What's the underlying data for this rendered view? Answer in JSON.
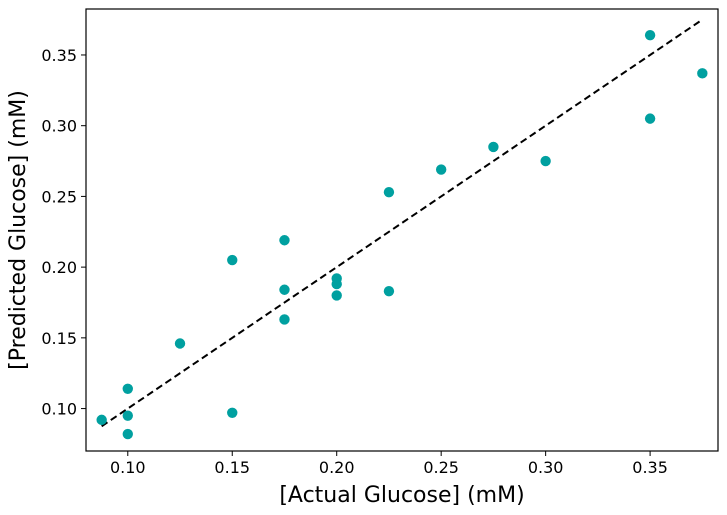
{
  "chart_data": {
    "type": "scatter",
    "title": "",
    "xlabel": "[Actual Glucose] (mM)",
    "ylabel": "[Predicted Glucose] (mM)",
    "xlim": [
      0.08,
      0.3825
    ],
    "ylim": [
      0.07,
      0.3825
    ],
    "xticks": [
      0.1,
      0.15,
      0.2,
      0.25,
      0.3,
      0.35
    ],
    "xtick_labels": [
      "0.10",
      "0.15",
      "0.20",
      "0.25",
      "0.30",
      "0.35"
    ],
    "yticks": [
      0.1,
      0.15,
      0.2,
      0.25,
      0.3,
      0.35
    ],
    "ytick_labels": [
      "0.10",
      "0.15",
      "0.20",
      "0.25",
      "0.30",
      "0.35"
    ],
    "grid": false,
    "marker_color": "#00a0a0",
    "reference_line": {
      "style": "dashed",
      "color": "#000000",
      "x": [
        0.0875,
        0.375
      ],
      "y": [
        0.0875,
        0.375
      ]
    },
    "points": [
      {
        "x": 0.0875,
        "y": 0.092
      },
      {
        "x": 0.1,
        "y": 0.114
      },
      {
        "x": 0.1,
        "y": 0.095
      },
      {
        "x": 0.1,
        "y": 0.082
      },
      {
        "x": 0.125,
        "y": 0.146
      },
      {
        "x": 0.15,
        "y": 0.205
      },
      {
        "x": 0.15,
        "y": 0.097
      },
      {
        "x": 0.175,
        "y": 0.219
      },
      {
        "x": 0.175,
        "y": 0.184
      },
      {
        "x": 0.175,
        "y": 0.163
      },
      {
        "x": 0.2,
        "y": 0.192
      },
      {
        "x": 0.2,
        "y": 0.188
      },
      {
        "x": 0.2,
        "y": 0.18
      },
      {
        "x": 0.225,
        "y": 0.253
      },
      {
        "x": 0.225,
        "y": 0.183
      },
      {
        "x": 0.25,
        "y": 0.269
      },
      {
        "x": 0.275,
        "y": 0.285
      },
      {
        "x": 0.3,
        "y": 0.275
      },
      {
        "x": 0.35,
        "y": 0.364
      },
      {
        "x": 0.35,
        "y": 0.305
      },
      {
        "x": 0.375,
        "y": 0.337
      }
    ]
  }
}
